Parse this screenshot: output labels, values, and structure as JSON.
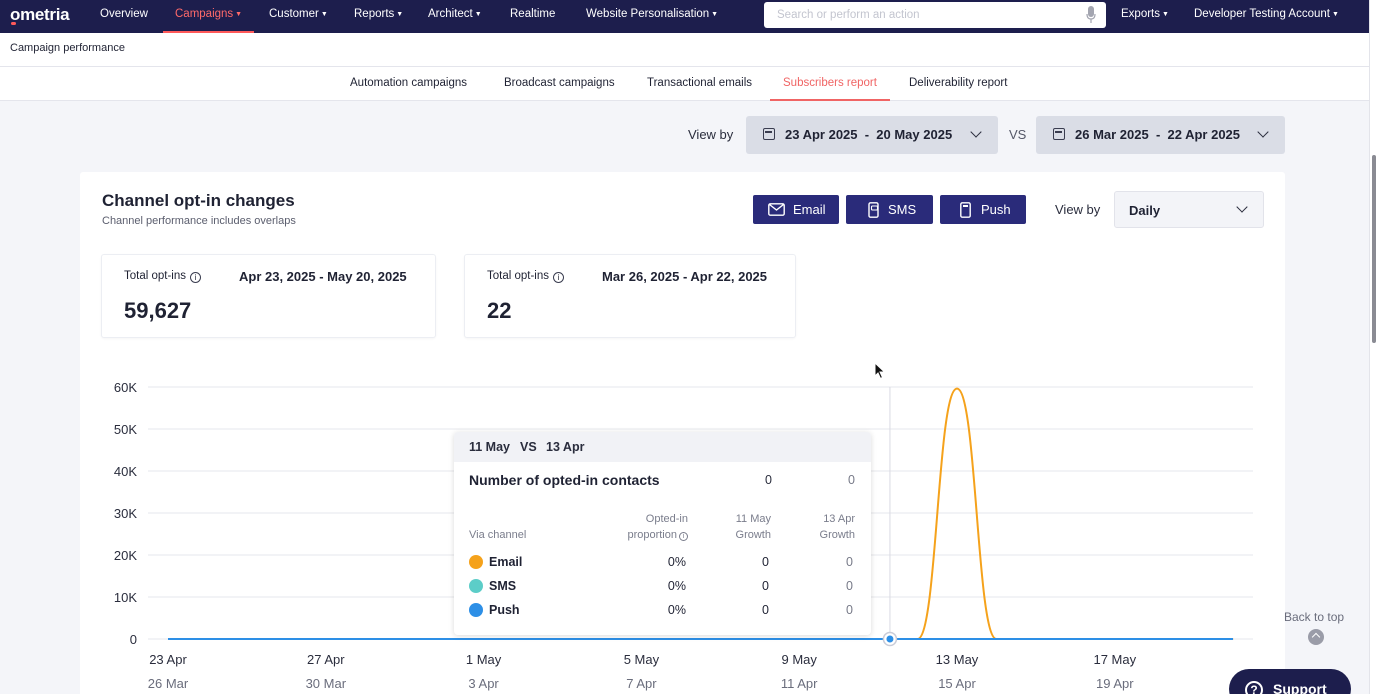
{
  "brand": {
    "logo": "ometria"
  },
  "nav": {
    "items": [
      {
        "label": "Overview",
        "caret": false
      },
      {
        "label": "Campaigns",
        "caret": true,
        "active": true
      },
      {
        "label": "Customer",
        "caret": true
      },
      {
        "label": "Reports",
        "caret": true
      },
      {
        "label": "Architect",
        "caret": true
      },
      {
        "label": "Realtime",
        "caret": false
      },
      {
        "label": "Website Personalisation",
        "caret": true
      }
    ],
    "search_placeholder": "Search or perform an action",
    "exports": "Exports",
    "account": "Developer Testing Account"
  },
  "page": {
    "title": "Campaign performance"
  },
  "tabs": [
    {
      "label": "Automation campaigns"
    },
    {
      "label": "Broadcast campaigns"
    },
    {
      "label": "Transactional emails"
    },
    {
      "label": "Subscribers report",
      "active": true
    },
    {
      "label": "Deliverability report"
    }
  ],
  "compare": {
    "view_by_label": "View by",
    "current_range": "23 Apr 2025  -  20 May 2025",
    "vs_label": "VS",
    "previous_range": "26 Mar 2025  -  22 Apr 2025"
  },
  "card": {
    "title": "Channel opt-in changes",
    "subtitle": "Channel performance includes overlaps",
    "channel_buttons": {
      "email": "Email",
      "sms": "SMS",
      "push": "Push"
    },
    "view_by_label": "View by",
    "granularity": "Daily",
    "stats": [
      {
        "label": "Total opt-ins",
        "range": "Apr 23, 2025 - May 20, 2025",
        "value": "59,627"
      },
      {
        "label": "Total opt-ins",
        "range": "Mar 26, 2025 - Apr 22, 2025",
        "value": "22"
      }
    ]
  },
  "chart_data": {
    "type": "line",
    "title": "",
    "yticks": [
      "60K",
      "50K",
      "40K",
      "30K",
      "20K",
      "10K",
      "0"
    ],
    "ylim": [
      0,
      60000
    ],
    "x_labels_current": [
      "23 Apr",
      "27 Apr",
      "1 May",
      "5 May",
      "9 May",
      "13 May",
      "17 May"
    ],
    "x_labels_previous": [
      "26 Mar",
      "30 Mar",
      "3 Apr",
      "7 Apr",
      "11 Apr",
      "15 Apr",
      "19 Apr"
    ],
    "x": [
      "23 Apr",
      "24 Apr",
      "25 Apr",
      "26 Apr",
      "27 Apr",
      "28 Apr",
      "29 Apr",
      "30 Apr",
      "1 May",
      "2 May",
      "3 May",
      "4 May",
      "5 May",
      "6 May",
      "7 May",
      "8 May",
      "9 May",
      "10 May",
      "11 May",
      "12 May",
      "13 May",
      "14 May",
      "15 May",
      "16 May",
      "17 May",
      "18 May",
      "19 May",
      "20 May"
    ],
    "series": [
      {
        "name": "Email",
        "color": "#f5a21b",
        "values": [
          0,
          0,
          0,
          0,
          0,
          0,
          0,
          0,
          0,
          0,
          0,
          0,
          0,
          0,
          0,
          0,
          0,
          0,
          0,
          0,
          59600,
          0,
          0,
          0,
          0,
          0,
          0,
          0
        ]
      },
      {
        "name": "Push",
        "color": "#2d8fe6",
        "values": [
          0,
          0,
          0,
          0,
          0,
          0,
          0,
          0,
          0,
          0,
          0,
          0,
          0,
          0,
          0,
          0,
          0,
          0,
          0,
          0,
          0,
          0,
          0,
          0,
          0,
          0,
          0,
          0
        ]
      }
    ],
    "grid": true,
    "hover_index": 18
  },
  "tooltip": {
    "date_a": "11 May",
    "vs": "VS",
    "date_b": "13 Apr",
    "metric_label": "Number of opted-in contacts",
    "metric_a": "0",
    "metric_b": "0",
    "col_channel": "Via channel",
    "col_proportion": [
      "Opted-in",
      "proportion"
    ],
    "col_growth_a": [
      "11 May",
      "Growth"
    ],
    "col_growth_b": [
      "13 Apr",
      "Growth"
    ],
    "rows": [
      {
        "name": "Email",
        "color": "#f5a21b",
        "proportion": "0%",
        "growth_a": "0",
        "growth_b": "0"
      },
      {
        "name": "SMS",
        "color": "#5ccdc8",
        "proportion": "0%",
        "growth_a": "0",
        "growth_b": "0"
      },
      {
        "name": "Push",
        "color": "#2d8fe6",
        "proportion": "0%",
        "growth_a": "0",
        "growth_b": "0"
      }
    ]
  },
  "footer": {
    "back_to_top": "Back to top",
    "support": "Support"
  }
}
